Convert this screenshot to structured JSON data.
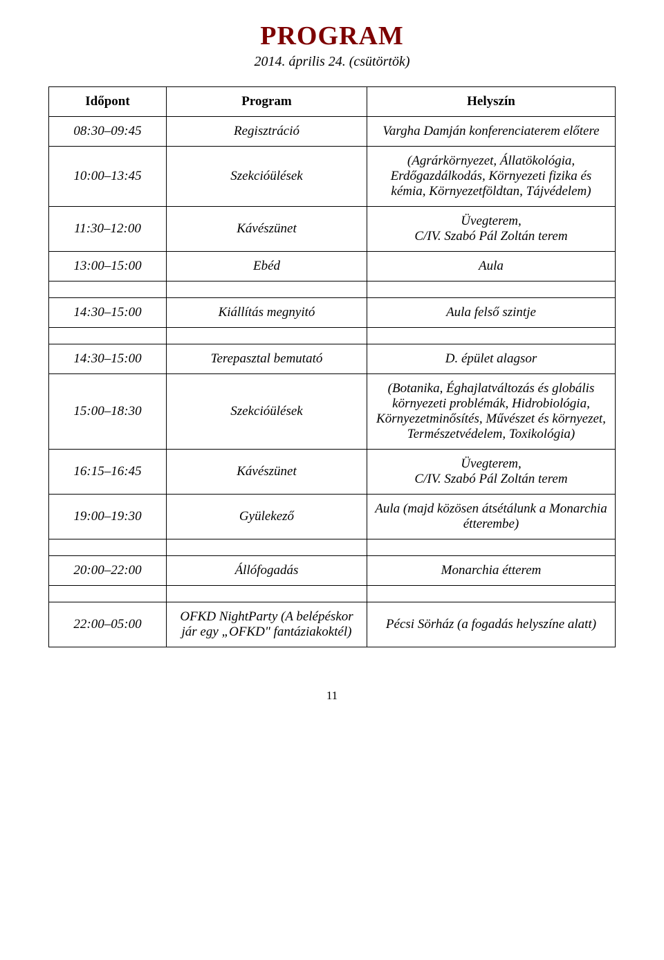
{
  "title": "PROGRAM",
  "subtitle": "2014. április 24. (csütörtök)",
  "columns": [
    "Időpont",
    "Program",
    "Helyszín"
  ],
  "rows": [
    {
      "time": "08:30–09:45",
      "program": "Regisztráció",
      "loc": "Vargha Damján konferenciaterem előtere"
    },
    {
      "time": "10:00–13:45",
      "program": "Szekcióülések",
      "loc": "(Agrárkörnyezet, Állatökológia, Erdőgazdálkodás, Környezeti fizika és kémia, Környezetföldtan, Tájvédelem)"
    },
    {
      "time": "11:30–12:00",
      "program": "Kávészünet",
      "loc": "Üvegterem,\nC/IV. Szabó Pál Zoltán terem"
    },
    {
      "time": "13:00–15:00",
      "program": "Ebéd",
      "loc": "Aula"
    },
    {
      "spacer": true
    },
    {
      "time": "14:30–15:00",
      "program": "Kiállítás megnyitó",
      "loc": "Aula felső szintje"
    },
    {
      "spacer": true
    },
    {
      "time": "14:30–15:00",
      "program": "Terepasztal bemutató",
      "loc": "D. épület alagsor"
    },
    {
      "time": "15:00–18:30",
      "program": "Szekcióülések",
      "loc": "(Botanika, Éghajlatváltozás és globális környezeti problémák, Hidrobiológia, Környezetminősítés, Művészet és környezet, Természetvédelem, Toxikológia)"
    },
    {
      "time": "16:15–16:45",
      "program": "Kávészünet",
      "loc": "Üvegterem,\nC/IV. Szabó Pál Zoltán terem"
    },
    {
      "time": "19:00–19:30",
      "program": "Gyülekező",
      "loc": "Aula (majd közösen átsétálunk a Monarchia étterembe)"
    },
    {
      "spacer": true
    },
    {
      "time": "20:00–22:00",
      "program": "Állófogadás",
      "loc": "Monarchia étterem"
    },
    {
      "spacer": true
    },
    {
      "time": "22:00–05:00",
      "program": "OFKD NightParty (A belépéskor jár egy „OFKD\" fantáziakoktél)",
      "loc": "Pécsi Sörház (a fogadás helyszíne alatt)"
    }
  ],
  "page_number": "11",
  "colors": {
    "title": "#7d0000",
    "text": "#000000",
    "border": "#000000",
    "background": "#ffffff"
  },
  "fonts": {
    "title_size": 38,
    "body_size": 19
  }
}
